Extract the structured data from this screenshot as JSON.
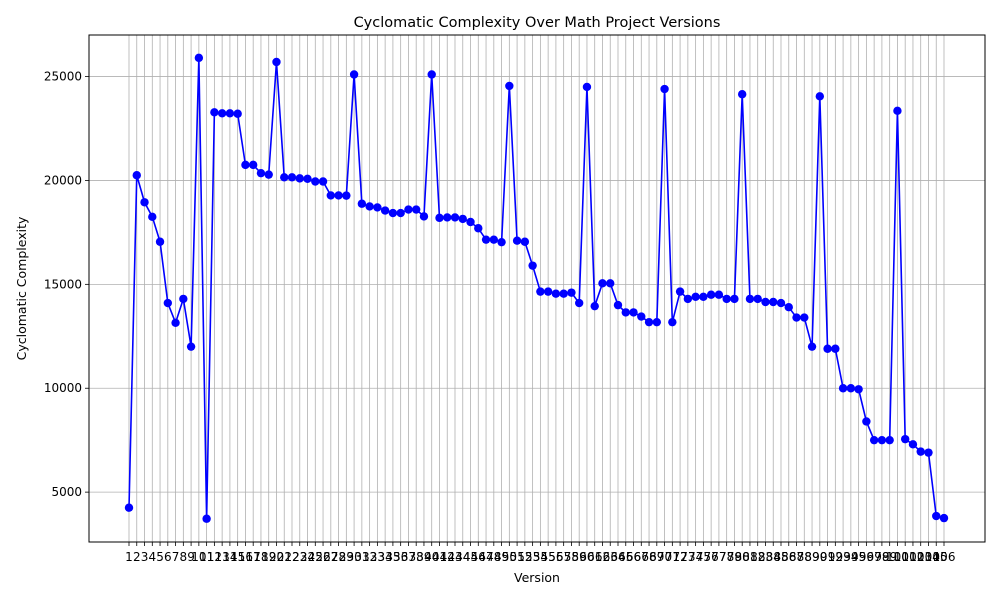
{
  "chart_data": {
    "type": "line",
    "title": "Cyclomatic Complexity Over Math Project Versions",
    "xlabel": "Version",
    "ylabel": "Cyclomatic Complexity",
    "ylim": [
      2600,
      27000
    ],
    "yticks": [
      5000,
      10000,
      15000,
      20000,
      25000
    ],
    "grid": true,
    "line_color": "#0000ff",
    "marker": "circle",
    "x": [
      1,
      2,
      3,
      4,
      5,
      6,
      7,
      8,
      9,
      10,
      11,
      12,
      13,
      14,
      15,
      16,
      17,
      18,
      19,
      20,
      21,
      22,
      23,
      24,
      25,
      26,
      27,
      28,
      29,
      30,
      31,
      32,
      33,
      34,
      35,
      36,
      37,
      38,
      39,
      40,
      41,
      42,
      43,
      44,
      45,
      46,
      47,
      48,
      49,
      50,
      51,
      52,
      53,
      54,
      55,
      56,
      57,
      58,
      59,
      60,
      61,
      62,
      63,
      64,
      65,
      66,
      67,
      68,
      69,
      70,
      71,
      72,
      73,
      74,
      75,
      76,
      77,
      78,
      79,
      80,
      81,
      82,
      83,
      84,
      85,
      86,
      87,
      88,
      89,
      90,
      91,
      92,
      93,
      94,
      95,
      96,
      97,
      98,
      99,
      100,
      101,
      102,
      103,
      104,
      105,
      106
    ],
    "values": [
      4250,
      20250,
      18950,
      18250,
      17050,
      14100,
      13150,
      14300,
      12000,
      25900,
      3720,
      23280,
      23230,
      23230,
      23210,
      20750,
      20750,
      20350,
      20280,
      25700,
      20150,
      20150,
      20100,
      20080,
      19950,
      19950,
      19280,
      19280,
      19270,
      25100,
      18880,
      18750,
      18700,
      18550,
      18430,
      18430,
      18600,
      18600,
      18270,
      25100,
      18200,
      18220,
      18220,
      18150,
      18000,
      17700,
      17150,
      17150,
      17030,
      24550,
      17100,
      17050,
      15900,
      14650,
      14650,
      14550,
      14550,
      14600,
      14100,
      24500,
      13950,
      15050,
      15050,
      14000,
      13650,
      13650,
      13450,
      13180,
      13180,
      24400,
      13180,
      14650,
      14300,
      14400,
      14400,
      14500,
      14500,
      14300,
      14300,
      24150,
      14300,
      14300,
      14150,
      14150,
      14100,
      13900,
      13400,
      13400,
      12000,
      24050,
      11900,
      11900,
      10000,
      10000,
      9950,
      8400,
      7500,
      7500,
      7500,
      23350,
      7550,
      7300,
      6950,
      6900,
      3850,
      3750
    ]
  }
}
